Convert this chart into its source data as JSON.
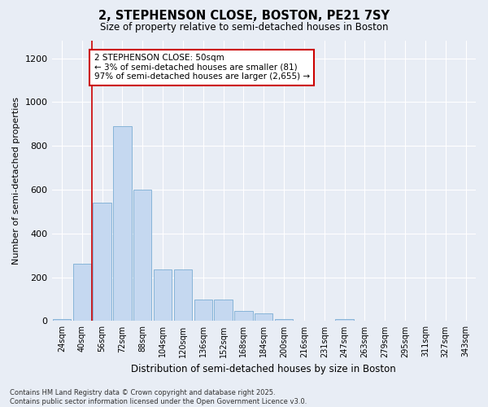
{
  "title_line1": "2, STEPHENSON CLOSE, BOSTON, PE21 7SY",
  "title_line2": "Size of property relative to semi-detached houses in Boston",
  "xlabel": "Distribution of semi-detached houses by size in Boston",
  "ylabel": "Number of semi-detached properties",
  "categories": [
    "24sqm",
    "40sqm",
    "56sqm",
    "72sqm",
    "88sqm",
    "104sqm",
    "120sqm",
    "136sqm",
    "152sqm",
    "168sqm",
    "184sqm",
    "200sqm",
    "216sqm",
    "231sqm",
    "247sqm",
    "263sqm",
    "279sqm",
    "295sqm",
    "311sqm",
    "327sqm",
    "343sqm"
  ],
  "values": [
    10,
    260,
    540,
    890,
    600,
    235,
    235,
    100,
    100,
    45,
    35,
    10,
    0,
    0,
    10,
    0,
    0,
    0,
    0,
    0,
    0
  ],
  "bar_color": "#c5d8f0",
  "bar_edge_color": "#7aadd4",
  "annotation_text": "2 STEPHENSON CLOSE: 50sqm\n← 3% of semi-detached houses are smaller (81)\n97% of semi-detached houses are larger (2,655) →",
  "annotation_box_color": "#ffffff",
  "annotation_box_edge": "#cc0000",
  "vline_x": 1.5,
  "vline_color": "#cc0000",
  "ylim": [
    0,
    1280
  ],
  "yticks": [
    0,
    200,
    400,
    600,
    800,
    1000,
    1200
  ],
  "bg_color": "#e8edf5",
  "grid_color": "#ffffff",
  "footnote": "Contains HM Land Registry data © Crown copyright and database right 2025.\nContains public sector information licensed under the Open Government Licence v3.0."
}
